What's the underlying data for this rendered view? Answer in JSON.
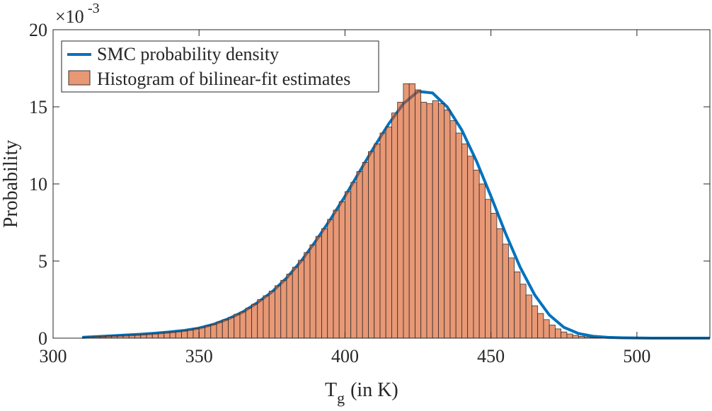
{
  "chart_data": {
    "type": "histogram",
    "xlabel": {
      "main": "T",
      "subscript": "g",
      "suffix": "(in K)"
    },
    "ylabel": "Probability",
    "y_multiplier": {
      "base": "×10",
      "exponent": "-3"
    },
    "xlim": [
      300,
      525
    ],
    "ylim": [
      0,
      20
    ],
    "xticks": [
      300,
      350,
      400,
      450,
      500
    ],
    "yticks": [
      0,
      5,
      10,
      15,
      20
    ],
    "legend": "top-left",
    "histogram": {
      "name": "Histogram of bilinear-fit estimates",
      "color": "#D95319",
      "opacity": 0.6,
      "bins": [
        310,
        312,
        314,
        316,
        318,
        320,
        322,
        324,
        326,
        328,
        330,
        332,
        334,
        336,
        338,
        340,
        342,
        344,
        346,
        348,
        350,
        352,
        354,
        356,
        358,
        360,
        362,
        364,
        366,
        368,
        370,
        372,
        374,
        376,
        378,
        380,
        382,
        384,
        386,
        388,
        390,
        392,
        394,
        396,
        398,
        400,
        402,
        404,
        406,
        408,
        410,
        412,
        414,
        416,
        418,
        420,
        422,
        424,
        426,
        428,
        430,
        432,
        434,
        436,
        438,
        440,
        442,
        444,
        446,
        448,
        450,
        452,
        454,
        456,
        458,
        460,
        462,
        464,
        466,
        468,
        470,
        472,
        474,
        476,
        478,
        480,
        482,
        484,
        486,
        488,
        490,
        492
      ],
      "values": [
        0.05,
        0.08,
        0.1,
        0.12,
        0.14,
        0.15,
        0.17,
        0.19,
        0.2,
        0.22,
        0.24,
        0.27,
        0.3,
        0.33,
        0.36,
        0.4,
        0.44,
        0.48,
        0.55,
        0.62,
        0.7,
        0.8,
        0.9,
        1.05,
        1.2,
        1.35,
        1.55,
        1.7,
        1.95,
        2.2,
        2.5,
        2.75,
        3.05,
        3.4,
        3.75,
        4.15,
        4.6,
        5.05,
        5.55,
        6.05,
        6.6,
        7.1,
        7.7,
        8.3,
        8.85,
        9.5,
        10.1,
        10.8,
        11.4,
        12.1,
        12.6,
        13.3,
        13.7,
        14.6,
        15.3,
        16.5,
        16.5,
        16.1,
        15.3,
        15.2,
        15.4,
        15.2,
        14.8,
        14.1,
        13.3,
        12.6,
        11.8,
        10.9,
        10.0,
        9.0,
        8.1,
        7.1,
        6.1,
        5.2,
        4.3,
        3.5,
        2.8,
        2.1,
        1.6,
        1.2,
        0.85,
        0.6,
        0.4,
        0.27,
        0.18,
        0.12,
        0.08,
        0.05,
        0.03,
        0.02,
        0.01
      ]
    },
    "line": {
      "name": "SMC probability density",
      "color": "#0072BD",
      "x": [
        310,
        315,
        320,
        325,
        330,
        335,
        340,
        345,
        350,
        355,
        360,
        365,
        370,
        375,
        380,
        385,
        390,
        395,
        400,
        405,
        410,
        415,
        420,
        425,
        430,
        435,
        440,
        445,
        450,
        455,
        460,
        465,
        470,
        475,
        480,
        485,
        490,
        495,
        500,
        505,
        510,
        515,
        520,
        525
      ],
      "values": [
        0.05,
        0.1,
        0.15,
        0.2,
        0.25,
        0.32,
        0.4,
        0.5,
        0.65,
        0.9,
        1.25,
        1.7,
        2.3,
        3.0,
        3.9,
        5.0,
        6.3,
        7.7,
        9.2,
        10.8,
        12.4,
        13.9,
        15.2,
        16.0,
        15.9,
        15.0,
        13.5,
        11.5,
        9.2,
        6.8,
        4.6,
        2.8,
        1.5,
        0.7,
        0.3,
        0.12,
        0.05,
        0.02,
        0.01,
        0,
        0,
        0,
        0,
        0
      ]
    }
  }
}
